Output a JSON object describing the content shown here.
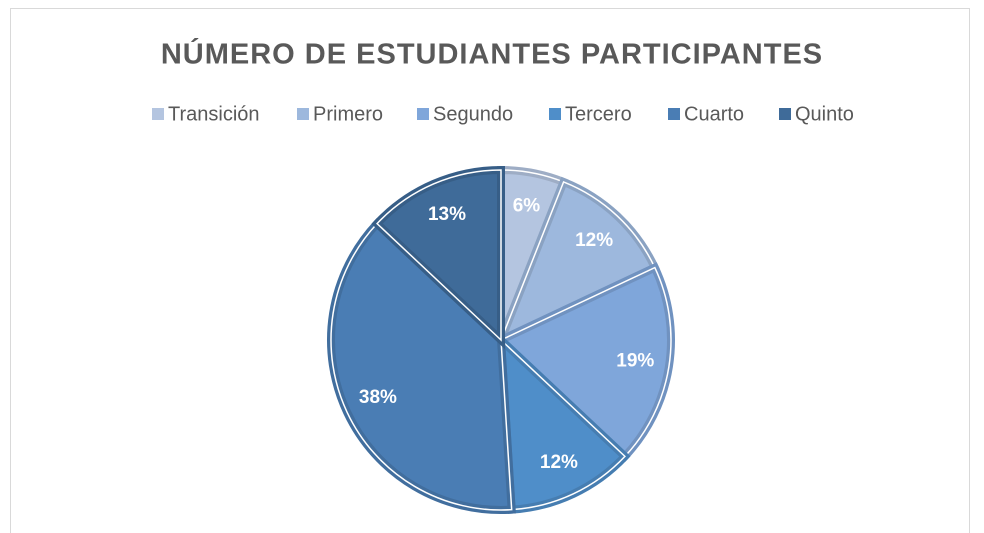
{
  "chart_data": {
    "type": "pie",
    "title": "NÚMERO DE ESTUDIANTES PARTICIPANTES",
    "categories": [
      "Transición",
      "Primero",
      "Segundo",
      "Tercero",
      "Cuarto",
      "Quinto"
    ],
    "values": [
      6,
      12,
      19,
      12,
      38,
      13
    ],
    "value_labels": [
      "6%",
      "12%",
      "19%",
      "12%",
      "38%",
      "13%"
    ],
    "colors": [
      "#b4c5e0",
      "#9db8dd",
      "#7fa6da",
      "#4f8ec9",
      "#4a7db4",
      "#3f6b99"
    ],
    "legend": "top"
  }
}
